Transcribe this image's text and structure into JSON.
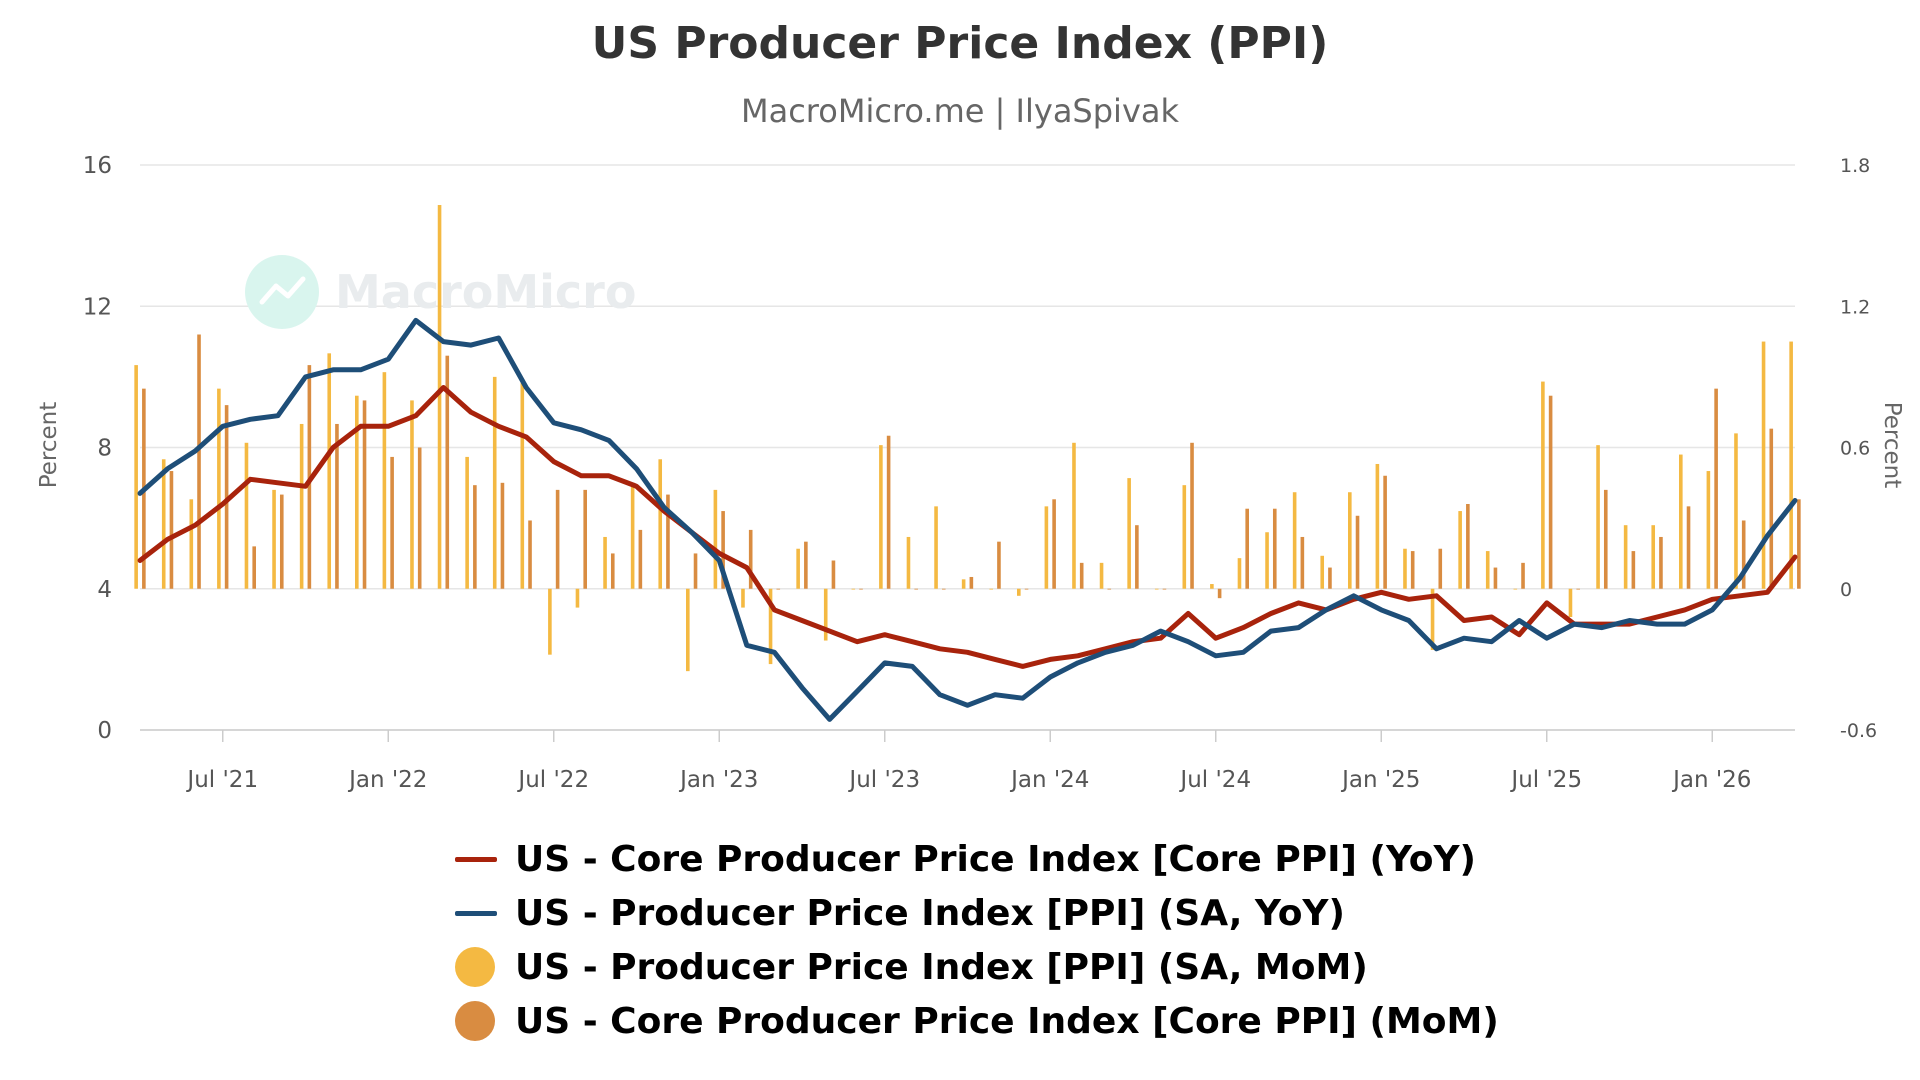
{
  "chart_data": {
    "type": "line",
    "title": "US Producer Price Index (PPI)",
    "subtitle": "MacroMicro.me | IlyaSpivak",
    "watermark": "MacroMicro",
    "ylabel_left": "Percent",
    "ylabel_right": "Percent",
    "ylim_left": [
      0,
      16
    ],
    "ylim_right": [
      -0.6,
      1.8
    ],
    "yticks_left": [
      0,
      4,
      8,
      12,
      16
    ],
    "yticks_right": [
      -0.6,
      0,
      0.6,
      1.2,
      1.8
    ],
    "xlim": [
      "2021-04",
      "2026-04"
    ],
    "xticks": [
      {
        "date": "2021-07",
        "label": "Jul '21"
      },
      {
        "date": "2022-01",
        "label": "Jan '22"
      },
      {
        "date": "2022-07",
        "label": "Jul '22"
      },
      {
        "date": "2023-01",
        "label": "Jan '23"
      },
      {
        "date": "2023-07",
        "label": "Jul '23"
      },
      {
        "date": "2024-01",
        "label": "Jan '24"
      },
      {
        "date": "2024-07",
        "label": "Jul '24"
      },
      {
        "date": "2025-01",
        "label": "Jan '25"
      },
      {
        "date": "2025-07",
        "label": "Jul '25"
      },
      {
        "date": "2026-01",
        "label": "Jan '26"
      }
    ],
    "grid": true,
    "legend_position": "bottom",
    "dates": [
      "2021-04",
      "2021-05",
      "2021-06",
      "2021-07",
      "2021-08",
      "2021-09",
      "2021-10",
      "2021-11",
      "2021-12",
      "2022-01",
      "2022-02",
      "2022-03",
      "2022-04",
      "2022-05",
      "2022-06",
      "2022-07",
      "2022-08",
      "2022-09",
      "2022-10",
      "2022-11",
      "2022-12",
      "2023-01",
      "2023-02",
      "2023-03",
      "2023-04",
      "2023-05",
      "2023-06",
      "2023-07",
      "2023-08",
      "2023-09",
      "2023-10",
      "2023-11",
      "2023-12",
      "2024-01",
      "2024-02",
      "2024-03",
      "2024-04",
      "2024-05",
      "2024-06",
      "2024-07",
      "2024-08",
      "2024-09",
      "2024-10",
      "2024-11",
      "2024-12",
      "2025-01",
      "2025-02",
      "2025-03",
      "2025-04",
      "2025-05",
      "2025-06",
      "2025-07",
      "2025-08",
      "2025-09",
      "2025-10",
      "2025-11",
      "2025-12",
      "2026-01",
      "2026-02",
      "2026-03",
      "2026-04"
    ],
    "series": [
      {
        "name": "US - Core Producer Price Index [Core PPI] (YoY)",
        "type": "line",
        "axis": "left",
        "color": "#A8230C",
        "values": [
          4.8,
          5.4,
          5.8,
          6.4,
          7.1,
          7.0,
          6.9,
          8.0,
          8.6,
          8.6,
          8.9,
          9.7,
          9.0,
          8.6,
          8.3,
          7.6,
          7.2,
          7.2,
          6.9,
          6.2,
          5.6,
          5.0,
          4.6,
          3.4,
          3.1,
          2.8,
          2.5,
          2.7,
          2.5,
          2.3,
          2.2,
          2.0,
          1.8,
          2.0,
          2.1,
          2.3,
          2.5,
          2.6,
          3.3,
          2.6,
          2.9,
          3.3,
          3.6,
          3.4,
          3.7,
          3.9,
          3.7,
          3.8,
          3.1,
          3.2,
          2.7,
          3.6,
          3.0,
          3.0,
          3.0,
          3.2,
          3.4,
          3.7,
          3.8,
          3.9,
          4.9
        ]
      },
      {
        "name": "US - Producer Price Index [PPI] (SA, YoY)",
        "type": "line",
        "axis": "left",
        "color": "#1E4E78",
        "values": [
          6.7,
          7.4,
          7.9,
          8.6,
          8.8,
          8.9,
          10.0,
          10.2,
          10.2,
          10.5,
          11.6,
          11.0,
          10.9,
          11.1,
          9.7,
          8.7,
          8.5,
          8.2,
          7.4,
          6.3,
          5.6,
          4.8,
          2.4,
          2.2,
          1.2,
          0.3,
          1.1,
          1.9,
          1.8,
          1.0,
          0.7,
          1.0,
          0.9,
          1.5,
          1.9,
          2.2,
          2.4,
          2.8,
          2.5,
          2.1,
          2.2,
          2.8,
          2.9,
          3.4,
          3.8,
          3.4,
          3.1,
          2.3,
          2.6,
          2.5,
          3.1,
          2.6,
          3.0,
          2.9,
          3.1,
          3.0,
          3.0,
          3.4,
          4.3,
          5.5,
          6.5
        ]
      },
      {
        "name": "US - Producer Price Index [PPI] (SA, MoM)",
        "type": "bar",
        "axis": "right",
        "color": "#F4B942",
        "values": [
          0.95,
          0.55,
          0.38,
          0.85,
          0.62,
          0.42,
          0.7,
          1.0,
          0.82,
          0.92,
          0.8,
          1.63,
          0.56,
          0.9,
          0.88,
          -0.28,
          -0.08,
          0.22,
          0.45,
          0.55,
          -0.35,
          0.42,
          -0.08,
          -0.32,
          0.17,
          -0.22,
          0.0,
          0.61,
          0.22,
          0.35,
          0.04,
          0.0,
          -0.03,
          0.35,
          0.62,
          0.11,
          0.47,
          0.0,
          0.44,
          0.02,
          0.13,
          0.24,
          0.41,
          0.14,
          0.41,
          0.53,
          0.17,
          -0.26,
          0.33,
          0.16,
          0.0,
          0.88,
          -0.12,
          0.61,
          0.27,
          0.27,
          0.57,
          0.5,
          0.66,
          1.05,
          1.05
        ]
      },
      {
        "name": "US - Core Producer Price Index [Core PPI] (MoM)",
        "type": "bar",
        "axis": "right",
        "color": "#D98C41",
        "values": [
          0.85,
          0.5,
          1.08,
          0.78,
          0.18,
          0.4,
          0.95,
          0.7,
          0.8,
          0.56,
          0.6,
          0.99,
          0.44,
          0.45,
          0.29,
          0.42,
          0.42,
          0.15,
          0.25,
          0.4,
          0.15,
          0.33,
          0.25,
          0.0,
          0.2,
          0.12,
          0.0,
          0.65,
          0.0,
          0.0,
          0.05,
          0.2,
          0.0,
          0.38,
          0.11,
          0.0,
          0.27,
          0.0,
          0.62,
          -0.04,
          0.34,
          0.34,
          0.22,
          0.09,
          0.31,
          0.48,
          0.16,
          0.17,
          0.36,
          0.09,
          0.11,
          0.82,
          0.0,
          0.42,
          0.16,
          0.22,
          0.35,
          0.85,
          0.29,
          0.68,
          0.38
        ]
      }
    ]
  }
}
